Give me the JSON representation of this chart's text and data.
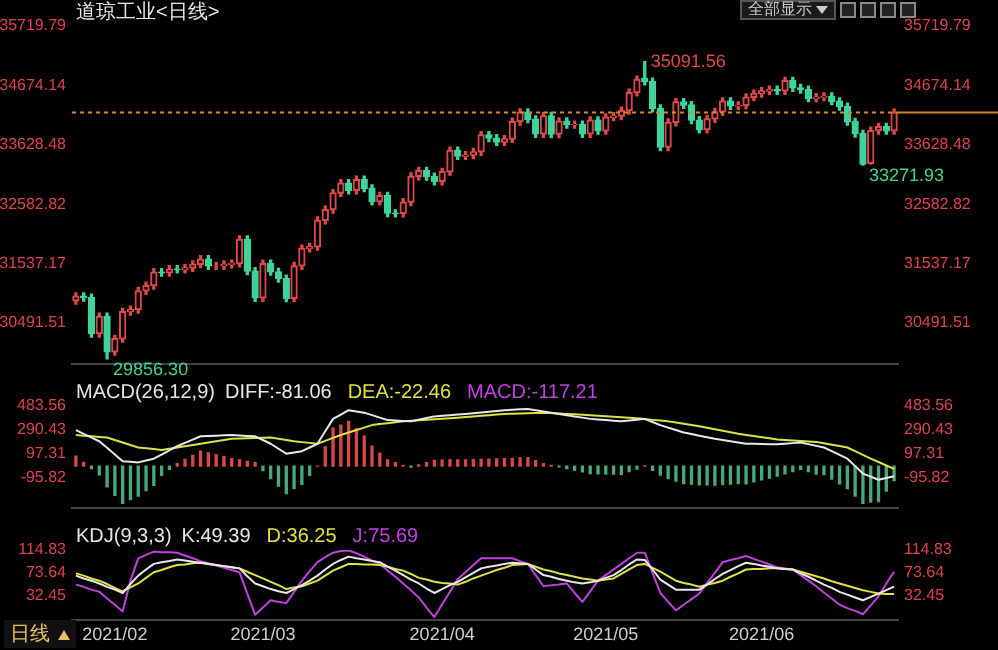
{
  "chart_data": [
    {
      "type": "candlestick",
      "title": "道琼工业<日线>",
      "categories": [
        null,
        null,
        null,
        null,
        null,
        "2021/02",
        null,
        null,
        null,
        null,
        null,
        null,
        null,
        null,
        null,
        null,
        null,
        null,
        null,
        null,
        null,
        null,
        null,
        null,
        "2021/03",
        null,
        null,
        null,
        null,
        null,
        null,
        null,
        null,
        null,
        null,
        null,
        null,
        null,
        null,
        null,
        null,
        null,
        null,
        null,
        null,
        null,
        null,
        "2021/04",
        null,
        null,
        null,
        null,
        null,
        null,
        null,
        null,
        null,
        null,
        null,
        null,
        null,
        null,
        null,
        null,
        null,
        null,
        null,
        null,
        "2021/05",
        null,
        null,
        null,
        null,
        null,
        null,
        null,
        null,
        null,
        null,
        null,
        null,
        null,
        null,
        null,
        null,
        null,
        null,
        null,
        "2021/06",
        null,
        null,
        null,
        null,
        null,
        null,
        null,
        null,
        null,
        null,
        null,
        null,
        null,
        null,
        null,
        null,
        null
      ],
      "ohlc": [
        [
          30880,
          31020,
          30820,
          30960
        ],
        [
          30960,
          31020,
          30877,
          30937
        ],
        [
          30937,
          30997,
          30243,
          30303
        ],
        [
          30303,
          30663,
          30243,
          30603
        ],
        [
          30603,
          30663,
          29856.3,
          29983
        ],
        [
          29983,
          30272,
          29923,
          30212
        ],
        [
          30212,
          30748,
          30152,
          30688
        ],
        [
          30688,
          30784,
          30628,
          30724
        ],
        [
          30724,
          31116,
          30664,
          31056
        ],
        [
          31056,
          31208,
          30996,
          31148
        ],
        [
          31148,
          31446,
          31088,
          31386
        ],
        [
          31386,
          31446,
          31316,
          31376
        ],
        [
          31376,
          31498,
          31316,
          31438
        ],
        [
          31438,
          31498,
          31371,
          31431
        ],
        [
          31431,
          31518,
          31371,
          31458
        ],
        [
          31458,
          31583,
          31398,
          31523
        ],
        [
          31523,
          31673,
          31463,
          31613
        ],
        [
          31613,
          31673,
          31434,
          31494
        ],
        [
          31494,
          31554,
          31434,
          31494
        ],
        [
          31494,
          31582,
          31434,
          31522
        ],
        [
          31522,
          31597,
          31462,
          31537
        ],
        [
          31537,
          32022,
          31477,
          31962
        ],
        [
          31962,
          32022,
          31342,
          31402
        ],
        [
          31402,
          31462,
          30872,
          30932
        ],
        [
          30932,
          31595,
          30872,
          31535
        ],
        [
          31535,
          31595,
          31331,
          31391
        ],
        [
          31391,
          31451,
          31210,
          31270
        ],
        [
          31270,
          31330,
          30864,
          30924
        ],
        [
          30924,
          31556,
          30864,
          31496
        ],
        [
          31496,
          31862,
          31436,
          31802
        ],
        [
          31802,
          31892,
          31742,
          31832
        ],
        [
          31832,
          32357,
          31772,
          32297
        ],
        [
          32297,
          32546,
          32237,
          32486
        ],
        [
          32486,
          32839,
          32426,
          32779
        ],
        [
          32779,
          33013,
          32719,
          32953
        ],
        [
          32953,
          33013,
          32766,
          32826
        ],
        [
          32826,
          33075,
          32766,
          33015
        ],
        [
          33015,
          33075,
          32802,
          32862
        ],
        [
          32862,
          32922,
          32568,
          32628
        ],
        [
          32628,
          32791,
          32568,
          32731
        ],
        [
          32731,
          32791,
          32363,
          32423
        ],
        [
          32423,
          32483,
          32360,
          32420
        ],
        [
          32420,
          32679,
          32360,
          32619
        ],
        [
          32619,
          33132,
          32559,
          33072
        ],
        [
          33072,
          33231,
          33012,
          33171
        ],
        [
          33171,
          33231,
          33007,
          33067
        ],
        [
          33067,
          33127,
          32922,
          32982
        ],
        [
          32982,
          33213,
          32922,
          33153
        ],
        [
          33153,
          33587,
          33093,
          33527
        ],
        [
          33527,
          33587,
          33370,
          33430
        ],
        [
          33430,
          33506,
          33370,
          33446
        ],
        [
          33446,
          33563,
          33386,
          33503
        ],
        [
          33503,
          33861,
          33443,
          33801
        ],
        [
          33801,
          33861,
          33686,
          33746
        ],
        [
          33746,
          33806,
          33617,
          33677
        ],
        [
          33677,
          33790,
          33617,
          33730
        ],
        [
          33730,
          34096,
          33670,
          34036
        ],
        [
          34036,
          34261,
          33976,
          34201
        ],
        [
          34201,
          34261,
          34018,
          34078
        ],
        [
          34078,
          34138,
          33761,
          33821
        ],
        [
          33821,
          34197,
          33761,
          34137
        ],
        [
          34137,
          34197,
          33755,
          33815
        ],
        [
          33815,
          34103,
          33755,
          34043
        ],
        [
          34043,
          34103,
          33922,
          33982
        ],
        [
          33982,
          34045,
          33922,
          33985
        ],
        [
          33985,
          34045,
          33760,
          33820
        ],
        [
          33820,
          34120,
          33760,
          34060
        ],
        [
          34060,
          34120,
          33815,
          33875
        ],
        [
          33875,
          34173,
          33815,
          34113
        ],
        [
          34113,
          34193,
          34053,
          34133
        ],
        [
          34133,
          34290,
          34073,
          34230
        ],
        [
          34230,
          34608,
          34170,
          34548
        ],
        [
          34548,
          34838,
          34488,
          34778
        ],
        [
          34800,
          35091.56,
          34683,
          34743
        ],
        [
          34743,
          34803,
          34210,
          34270
        ],
        [
          34270,
          34330,
          33527,
          33587
        ],
        [
          33587,
          34082,
          33527,
          34022
        ],
        [
          34022,
          34442,
          33962,
          34382
        ],
        [
          34382,
          34442,
          34268,
          34328
        ],
        [
          34328,
          34388,
          34001,
          34061
        ],
        [
          34061,
          34121,
          33836,
          33896
        ],
        [
          33896,
          34144,
          33836,
          34084
        ],
        [
          34084,
          34268,
          34024,
          34208
        ],
        [
          34208,
          34454,
          34148,
          34394
        ],
        [
          34394,
          34454,
          34252,
          34312
        ],
        [
          34312,
          34383,
          34252,
          34323
        ],
        [
          34323,
          34525,
          34263,
          34465
        ],
        [
          34465,
          34589,
          34405,
          34529
        ],
        [
          34529,
          34635,
          34469,
          34575
        ],
        [
          34575,
          34660,
          34515,
          34600
        ],
        [
          34600,
          34660,
          34517,
          34577
        ],
        [
          34577,
          34816,
          34517,
          34756
        ],
        [
          34756,
          34816,
          34570,
          34630
        ],
        [
          34630,
          34690,
          34540,
          34600
        ],
        [
          34600,
          34660,
          34387,
          34447
        ],
        [
          34447,
          34526,
          34387,
          34466
        ],
        [
          34466,
          34540,
          34406,
          34480
        ],
        [
          34480,
          34540,
          34334,
          34394
        ],
        [
          34394,
          34454,
          34239,
          34299
        ],
        [
          34299,
          34359,
          33973,
          34033
        ],
        [
          34033,
          34093,
          33763,
          33823
        ],
        [
          33823,
          33883,
          33271.93,
          33290
        ],
        [
          33300,
          33937,
          33290,
          33877
        ],
        [
          33877,
          34005,
          33817,
          33945
        ],
        [
          33945,
          34005,
          33814,
          33874
        ],
        [
          33874,
          34256,
          33814,
          34196
        ]
      ],
      "ylim": [
        29760,
        35719.79
      ],
      "yticks": [
        30491.51,
        31537.17,
        32582.82,
        33628.48,
        34674.14,
        35719.79
      ],
      "y2lim": [
        29760,
        35719.79
      ],
      "y2ticks": [
        30491.51,
        31537.17,
        32582.82,
        33628.48,
        34674.14,
        35719.79
      ],
      "tick_labels": "y",
      "ref_lines": [
        {
          "axis": "y",
          "value": 34196,
          "color": "#d08a20",
          "line_style": "dashed"
        }
      ],
      "annotations": [
        "全部显示",
        "35091.56",
        "33271.93",
        "29856.30"
      ]
    },
    {
      "type": "line",
      "title": "MACD(26,12,9)",
      "categories": [
        null,
        null,
        null,
        null,
        null,
        "2021/02",
        null,
        null,
        null,
        null,
        null,
        null,
        null,
        null,
        null,
        null,
        null,
        null,
        null,
        null,
        null,
        null,
        null,
        null,
        "2021/03",
        null,
        null,
        null,
        null,
        null,
        null,
        null,
        null,
        null,
        null,
        null,
        null,
        null,
        null,
        null,
        null,
        null,
        null,
        null,
        null,
        null,
        null,
        "2021/04",
        null,
        null,
        null,
        null,
        null,
        null,
        null,
        null,
        null,
        null,
        null,
        null,
        null,
        null,
        null,
        null,
        null,
        null,
        null,
        null,
        "2021/05",
        null,
        null,
        null,
        null,
        null,
        null,
        null,
        null,
        null,
        null,
        null,
        null,
        null,
        null,
        null,
        null,
        null,
        null,
        null,
        "2021/06",
        null,
        null,
        null,
        null,
        null,
        null,
        null,
        null,
        null,
        null,
        null,
        null,
        null,
        null,
        null,
        null,
        null
      ],
      "series": [
        {
          "name": "DIFF:-81.06",
          "type": "line",
          "color": "#e8e8e8",
          "values": [
            290,
            260,
            230,
            200,
            147,
            93,
            40,
            35,
            30,
            45,
            60,
            93,
            127,
            160,
            187,
            213,
            240,
            243,
            245,
            248,
            250,
            247,
            243,
            240,
            210,
            180,
            140,
            100,
            110,
            120,
            150,
            180,
            280,
            380,
            415,
            450,
            440,
            430,
            410,
            390,
            370,
            367,
            363,
            360,
            373,
            387,
            400,
            405,
            410,
            415,
            420,
            426,
            432,
            438,
            444,
            450,
            453,
            457,
            460,
            450,
            440,
            430,
            420,
            410,
            400,
            390,
            380,
            375,
            370,
            365,
            360,
            367,
            373,
            380,
            355,
            330,
            310,
            290,
            270,
            258,
            245,
            233,
            220,
            210,
            200,
            190,
            180,
            179,
            178,
            176,
            175,
            180,
            185,
            190,
            177,
            163,
            150,
            120,
            90,
            60,
            0,
            -60,
            -85,
            -110,
            -95,
            -81.06
          ]
        },
        {
          "name": "DEA:-22.46",
          "type": "line",
          "color": "#e0e040",
          "values": [
            250,
            245,
            240,
            235,
            230,
            210,
            190,
            170,
            150,
            143,
            137,
            130,
            140,
            150,
            160,
            170,
            180,
            190,
            200,
            210,
            220,
            222,
            224,
            226,
            228,
            230,
            220,
            210,
            200,
            193,
            187,
            180,
            203,
            227,
            250,
            270,
            290,
            310,
            330,
            338,
            345,
            353,
            360,
            364,
            368,
            373,
            377,
            381,
            385,
            390,
            395,
            400,
            405,
            410,
            415,
            420,
            422,
            424,
            426,
            428,
            430,
            427,
            423,
            420,
            417,
            413,
            410,
            406,
            402,
            397,
            393,
            389,
            385,
            379,
            372,
            366,
            360,
            350,
            340,
            330,
            320,
            308,
            296,
            284,
            272,
            260,
            251,
            242,
            233,
            224,
            215,
            211,
            207,
            203,
            199,
            195,
            184,
            172,
            161,
            150,
            120,
            90,
            60,
            33,
            5,
            -22.46
          ]
        },
        {
          "type": "bar",
          "color": "#c040e0",
          "colors": [
            "#d94848",
            "#d94848",
            "#48a878",
            "#48a878",
            "#48a878",
            "#48a878",
            "#48a878",
            "#48a878",
            "#48a878",
            "#48a878",
            "#48a878",
            "#48a878",
            "#48a878",
            "#d94848",
            "#d94848",
            "#d94848",
            "#d94848",
            "#d94848",
            "#d94848",
            "#d94848",
            "#d94848",
            "#d94848",
            "#d94848",
            "#d94848",
            "#48a878",
            "#48a878",
            "#48a878",
            "#48a878",
            "#48a878",
            "#48a878",
            "#48a878",
            "#d94848",
            "#d94848",
            "#d94848",
            "#d94848",
            "#d94848",
            "#d94848",
            "#d94848",
            "#d94848",
            "#d94848",
            "#d94848",
            "#d94848",
            "#d94848",
            "#48a878",
            "#d94848",
            "#d94848",
            "#d94848",
            "#d94848",
            "#d94848",
            "#d94848",
            "#d94848",
            "#d94848",
            "#d94848",
            "#d94848",
            "#d94848",
            "#d94848",
            "#d94848",
            "#d94848",
            "#d94848",
            "#d94848",
            "#d94848",
            "#d94848",
            "#48a878",
            "#48a878",
            "#48a878",
            "#48a878",
            "#48a878",
            "#48a878",
            "#48a878",
            "#48a878",
            "#48a878",
            "#48a878",
            "#48a878",
            "#d94848",
            "#48a878",
            "#48a878",
            "#48a878",
            "#48a878",
            "#48a878",
            "#48a878",
            "#48a878",
            "#48a878",
            "#48a878",
            "#48a878",
            "#48a878",
            "#48a878",
            "#48a878",
            "#48a878",
            "#48a878",
            "#48a878",
            "#48a878",
            "#48a878",
            "#48a878",
            "#48a878",
            "#48a878",
            "#48a878",
            "#48a878",
            "#48a878",
            "#48a878",
            "#48a878",
            "#48a878",
            "#48a878",
            "#48a878",
            "#48a878",
            "#48a878",
            "#48a878"
          ],
          "values": [
            80,
            30,
            -20,
            -70,
            -166,
            -234,
            -300,
            -270,
            -240,
            -196,
            -154,
            -74,
            -26,
            20,
            54,
            86,
            120,
            106,
            90,
            76,
            60,
            50,
            38,
            28,
            -36,
            -100,
            -160,
            -220,
            -180,
            -146,
            -74,
            0,
            154,
            306,
            330,
            360,
            300,
            240,
            160,
            104,
            50,
            28,
            6,
            -8,
            10,
            28,
            46,
            48,
            50,
            50,
            50,
            52,
            54,
            56,
            58,
            60,
            62,
            66,
            68,
            44,
            20,
            6,
            -6,
            -20,
            -34,
            -46,
            -60,
            -62,
            -64,
            -64,
            -66,
            -44,
            -24,
            2,
            -34,
            -72,
            -100,
            -120,
            -140,
            -144,
            -150,
            -150,
            -152,
            -148,
            -144,
            -140,
            -142,
            -126,
            -110,
            -96,
            -80,
            -62,
            -44,
            -26,
            -44,
            -64,
            -68,
            -104,
            -142,
            -180,
            -240,
            -300,
            -290,
            -286,
            -200,
            -117.21
          ]
        }
      ],
      "ylim": [
        -340,
        483.56
      ],
      "yticks": [
        -95.82,
        97.31,
        290.43,
        483.56
      ],
      "y2lim": [
        -340,
        483.56
      ],
      "y2ticks": [
        -95.82,
        97.31,
        290.43,
        483.56
      ],
      "tick_labels": "y",
      "legend": "top left",
      "marker": "none",
      "annotations": [
        "MACD:-117.21"
      ]
    },
    {
      "type": "line",
      "title": "KDJ(9,3,3)",
      "categories": [
        null,
        null,
        null,
        null,
        null,
        "2021/02",
        null,
        null,
        null,
        null,
        null,
        null,
        null,
        null,
        null,
        null,
        null,
        null,
        null,
        null,
        null,
        null,
        null,
        null,
        "2021/03",
        null,
        null,
        null,
        null,
        null,
        null,
        null,
        null,
        null,
        null,
        null,
        null,
        null,
        null,
        null,
        null,
        null,
        null,
        null,
        null,
        null,
        null,
        "2021/04",
        null,
        null,
        null,
        null,
        null,
        null,
        null,
        null,
        null,
        null,
        null,
        null,
        null,
        null,
        null,
        null,
        null,
        null,
        null,
        null,
        "2021/05",
        null,
        null,
        null,
        null,
        null,
        null,
        null,
        null,
        null,
        null,
        null,
        null,
        null,
        null,
        null,
        null,
        null,
        null,
        null,
        "2021/06",
        null,
        null,
        null,
        null,
        null,
        null,
        null,
        null,
        null,
        null,
        null,
        null,
        null,
        null,
        null,
        null,
        null
      ],
      "series": [
        {
          "name": "K:49.39",
          "color": "#e8e8e8",
          "values": [
            69,
            64,
            60,
            55,
            49,
            44,
            38,
            54,
            69,
            80,
            90,
            93,
            95,
            98,
            96,
            94,
            92,
            90,
            88,
            86,
            84,
            82,
            68,
            55,
            50,
            45,
            41,
            38,
            45,
            52,
            60,
            69,
            80,
            90,
            97,
            103,
            100,
            98,
            95,
            93,
            85,
            78,
            70,
            62,
            55,
            46,
            38,
            45,
            52,
            58,
            66,
            74,
            82,
            85,
            87,
            90,
            92,
            91,
            90,
            80,
            70,
            67,
            63,
            60,
            57,
            55,
            57,
            60,
            65,
            70,
            79,
            89,
            98,
            97,
            80,
            62,
            53,
            44,
            44,
            44,
            44,
            53,
            63,
            72,
            79,
            86,
            92,
            90,
            87,
            85,
            82,
            81,
            80,
            73,
            67,
            60,
            53,
            47,
            40,
            35,
            30,
            25,
            31,
            37,
            43,
            49.39
          ]
        },
        {
          "name": "D:36.25",
          "color": "#e0e040",
          "values": [
            73,
            69,
            64,
            60,
            54,
            47,
            41,
            48,
            55,
            65,
            75,
            79,
            84,
            88,
            89,
            91,
            92,
            90,
            88,
            86,
            84,
            82,
            76,
            70,
            64,
            58,
            52,
            45,
            48,
            50,
            55,
            60,
            69,
            78,
            84,
            90,
            90,
            89,
            89,
            88,
            85,
            81,
            78,
            72,
            65,
            62,
            58,
            56,
            55,
            53,
            58,
            64,
            69,
            74,
            79,
            83,
            88,
            89,
            90,
            85,
            80,
            77,
            73,
            70,
            67,
            64,
            62,
            60,
            62,
            64,
            72,
            80,
            88,
            90,
            83,
            76,
            68,
            60,
            56,
            53,
            49,
            53,
            56,
            60,
            67,
            73,
            80,
            81,
            81,
            82,
            82,
            81,
            80,
            76,
            72,
            68,
            64,
            59,
            55,
            51,
            47,
            43,
            40,
            37,
            36,
            36.25
          ]
        },
        {
          "name": "J:75.69",
          "color": "#c040e0",
          "values": [
            53,
            49,
            44,
            40,
            28,
            17,
            5,
            60,
            100,
            106,
            112,
            111,
            111,
            110,
            105,
            100,
            95,
            91,
            87,
            83,
            79,
            75,
            37,
            -1,
            12,
            25,
            22,
            20,
            40,
            60,
            77,
            93,
            102,
            110,
            113,
            114,
            109,
            103,
            96,
            90,
            78,
            67,
            55,
            43,
            30,
            12,
            -5,
            18,
            40,
            63,
            75,
            88,
            100,
            100,
            100,
            100,
            100,
            95,
            90,
            70,
            50,
            52,
            53,
            55,
            38,
            22,
            41,
            60,
            70,
            80,
            90,
            100,
            110,
            110,
            74,
            38,
            22,
            7,
            17,
            27,
            37,
            56,
            74,
            93,
            97,
            100,
            104,
            99,
            94,
            89,
            84,
            82,
            80,
            70,
            60,
            50,
            39,
            28,
            17,
            11,
            6,
            0,
            16,
            32,
            55,
            75.69
          ]
        }
      ],
      "ylim": [
        -11,
        114.83
      ],
      "yticks": [
        32.45,
        73.64,
        114.83
      ],
      "y2lim": [
        -11,
        114.83
      ],
      "y2ticks": [
        32.45,
        73.64,
        114.83
      ],
      "legend": "top left",
      "marker": "none",
      "annotations": [
        "日线"
      ]
    }
  ]
}
